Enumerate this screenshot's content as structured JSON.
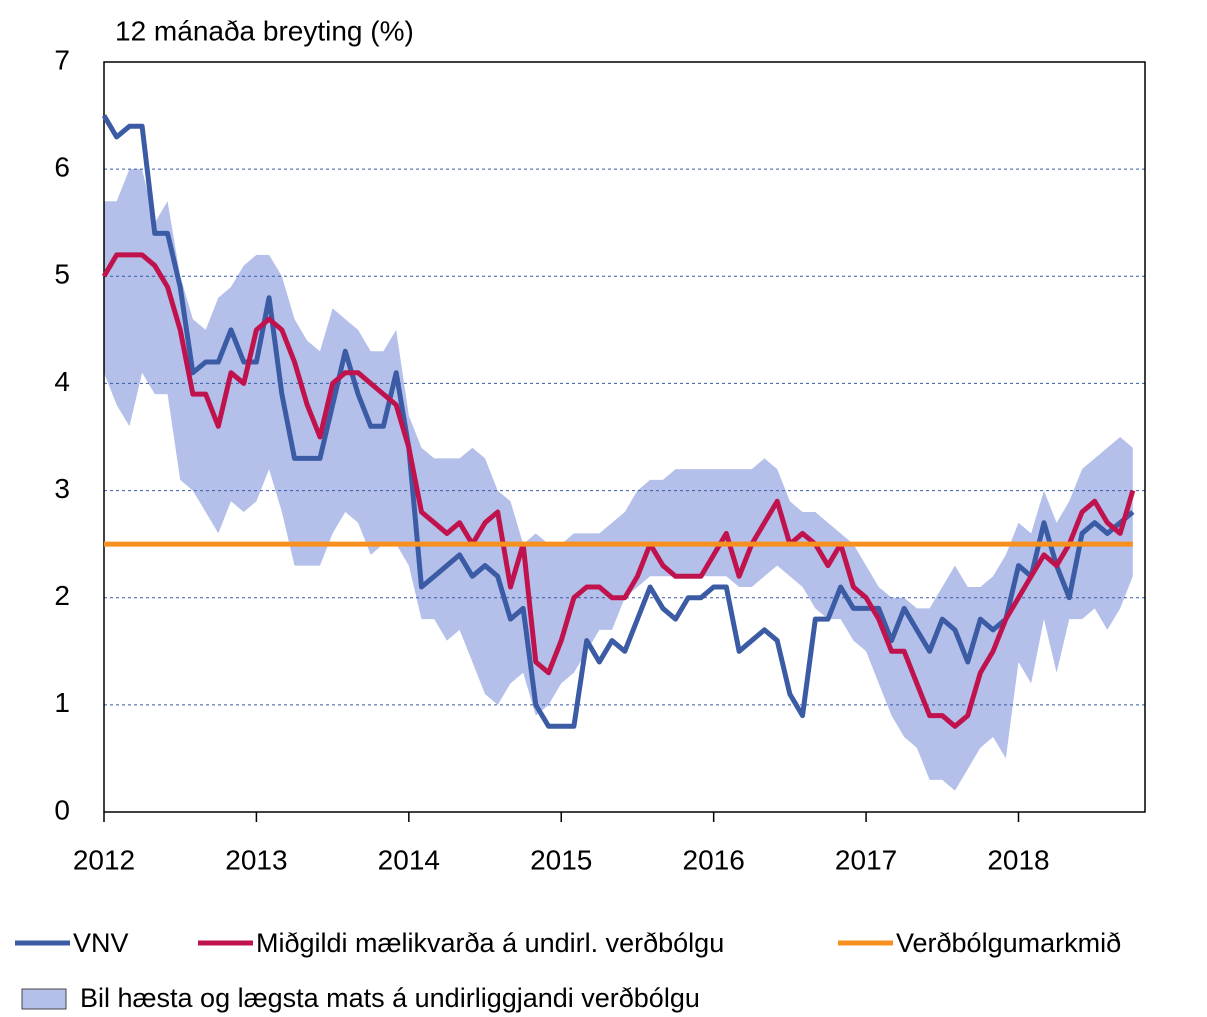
{
  "chart_data": {
    "type": "line",
    "title": "12 mánaða breyting (%)",
    "xlim": [
      2012,
      2018.83
    ],
    "xticks": [
      2012,
      2013,
      2014,
      2015,
      2016,
      2017,
      2018
    ],
    "ylim": [
      0,
      7
    ],
    "yticks": [
      0,
      1,
      2,
      3,
      4,
      5,
      6,
      7
    ],
    "grid": true,
    "x": [
      2012,
      2012.083,
      2012.167,
      2012.25,
      2012.333,
      2012.417,
      2012.5,
      2012.583,
      2012.667,
      2012.75,
      2012.833,
      2012.917,
      2013,
      2013.083,
      2013.167,
      2013.25,
      2013.333,
      2013.417,
      2013.5,
      2013.583,
      2013.667,
      2013.75,
      2013.833,
      2013.917,
      2014,
      2014.083,
      2014.167,
      2014.25,
      2014.333,
      2014.417,
      2014.5,
      2014.583,
      2014.667,
      2014.75,
      2014.833,
      2014.917,
      2015,
      2015.083,
      2015.167,
      2015.25,
      2015.333,
      2015.417,
      2015.5,
      2015.583,
      2015.667,
      2015.75,
      2015.833,
      2015.917,
      2016,
      2016.083,
      2016.167,
      2016.25,
      2016.333,
      2016.417,
      2016.5,
      2016.583,
      2016.667,
      2016.75,
      2016.833,
      2016.917,
      2017,
      2017.083,
      2017.167,
      2017.25,
      2017.333,
      2017.417,
      2017.5,
      2017.583,
      2017.667,
      2017.75,
      2017.833,
      2017.917,
      2018,
      2018.083,
      2018.167,
      2018.25,
      2018.333,
      2018.417,
      2018.5,
      2018.583,
      2018.667,
      2018.75
    ],
    "band": {
      "name": "Bil hæsta og lægsta mats á undirliggjandi verðbólgu",
      "color": "#b4c0ea",
      "high": [
        5.7,
        5.7,
        6.0,
        6.0,
        5.5,
        5.7,
        5.0,
        4.6,
        4.5,
        4.8,
        4.9,
        5.1,
        5.2,
        5.2,
        5.0,
        4.6,
        4.4,
        4.3,
        4.7,
        4.6,
        4.5,
        4.3,
        4.3,
        4.5,
        3.7,
        3.4,
        3.3,
        3.3,
        3.3,
        3.4,
        3.3,
        3.0,
        2.9,
        2.5,
        2.6,
        2.5,
        2.5,
        2.6,
        2.6,
        2.6,
        2.7,
        2.8,
        3.0,
        3.1,
        3.1,
        3.2,
        3.2,
        3.2,
        3.2,
        3.2,
        3.2,
        3.2,
        3.3,
        3.2,
        2.9,
        2.8,
        2.8,
        2.7,
        2.6,
        2.5,
        2.3,
        2.1,
        2.0,
        2.0,
        1.9,
        1.9,
        2.1,
        2.3,
        2.1,
        2.1,
        2.2,
        2.4,
        2.7,
        2.6,
        3.0,
        2.7,
        2.9,
        3.2,
        3.3,
        3.4,
        3.5,
        3.4
      ],
      "low": [
        4.1,
        3.8,
        3.6,
        4.1,
        3.9,
        3.9,
        3.1,
        3.0,
        2.8,
        2.6,
        2.9,
        2.8,
        2.9,
        3.2,
        2.8,
        2.3,
        2.3,
        2.3,
        2.6,
        2.8,
        2.7,
        2.4,
        2.5,
        2.5,
        2.3,
        1.8,
        1.8,
        1.6,
        1.7,
        1.4,
        1.1,
        1.0,
        1.2,
        1.3,
        0.9,
        1.0,
        1.2,
        1.3,
        1.5,
        1.7,
        1.7,
        2.0,
        2.1,
        2.2,
        2.2,
        2.2,
        2.2,
        2.2,
        2.2,
        2.2,
        2.1,
        2.1,
        2.2,
        2.3,
        2.2,
        2.1,
        1.9,
        1.8,
        1.8,
        1.6,
        1.5,
        1.2,
        0.9,
        0.7,
        0.6,
        0.3,
        0.3,
        0.2,
        0.4,
        0.6,
        0.7,
        0.5,
        1.4,
        1.2,
        1.8,
        1.3,
        1.8,
        1.8,
        1.9,
        1.7,
        1.9,
        2.2
      ]
    },
    "series": [
      {
        "name": "VNV",
        "color": "#3b5ba5",
        "values": [
          6.5,
          6.3,
          6.4,
          6.4,
          5.4,
          5.4,
          4.9,
          4.1,
          4.2,
          4.2,
          4.5,
          4.2,
          4.2,
          4.8,
          3.9,
          3.3,
          3.3,
          3.3,
          3.8,
          4.3,
          3.9,
          3.6,
          3.6,
          4.1,
          3.4,
          2.1,
          2.2,
          2.3,
          2.4,
          2.2,
          2.3,
          2.2,
          1.8,
          1.9,
          1.0,
          0.8,
          0.8,
          0.8,
          1.6,
          1.4,
          1.6,
          1.5,
          1.8,
          2.1,
          1.9,
          1.8,
          2.0,
          2.0,
          2.1,
          2.1,
          1.5,
          1.6,
          1.7,
          1.6,
          1.1,
          0.9,
          1.8,
          1.8,
          2.1,
          1.9,
          1.9,
          1.9,
          1.6,
          1.9,
          1.7,
          1.5,
          1.8,
          1.7,
          1.4,
          1.8,
          1.7,
          1.8,
          2.3,
          2.2,
          2.7,
          2.3,
          2.0,
          2.6,
          2.7,
          2.6,
          2.7,
          2.8
        ]
      },
      {
        "name": "Miðgildi mælikvarða á undirl. verðbólgu",
        "color": "#c0134e",
        "values": [
          5.0,
          5.2,
          5.2,
          5.2,
          5.1,
          4.9,
          4.5,
          3.9,
          3.9,
          3.6,
          4.1,
          4.0,
          4.5,
          4.6,
          4.5,
          4.2,
          3.8,
          3.5,
          4.0,
          4.1,
          4.1,
          4.0,
          3.9,
          3.8,
          3.4,
          2.8,
          2.7,
          2.6,
          2.7,
          2.5,
          2.7,
          2.8,
          2.1,
          2.5,
          1.4,
          1.3,
          1.6,
          2.0,
          2.1,
          2.1,
          2.0,
          2.0,
          2.2,
          2.5,
          2.3,
          2.2,
          2.2,
          2.2,
          2.4,
          2.6,
          2.2,
          2.5,
          2.7,
          2.9,
          2.5,
          2.6,
          2.5,
          2.3,
          2.5,
          2.1,
          2.0,
          1.8,
          1.5,
          1.5,
          1.2,
          0.9,
          0.9,
          0.8,
          0.9,
          1.3,
          1.5,
          1.8,
          2.0,
          2.2,
          2.4,
          2.3,
          2.5,
          2.8,
          2.9,
          2.7,
          2.6,
          3.0
        ]
      },
      {
        "name": "Verðbólgumarkmið",
        "color": "#f7901e",
        "x": [
          2012,
          2018.75
        ],
        "values": [
          2.5,
          2.5
        ]
      }
    ]
  }
}
